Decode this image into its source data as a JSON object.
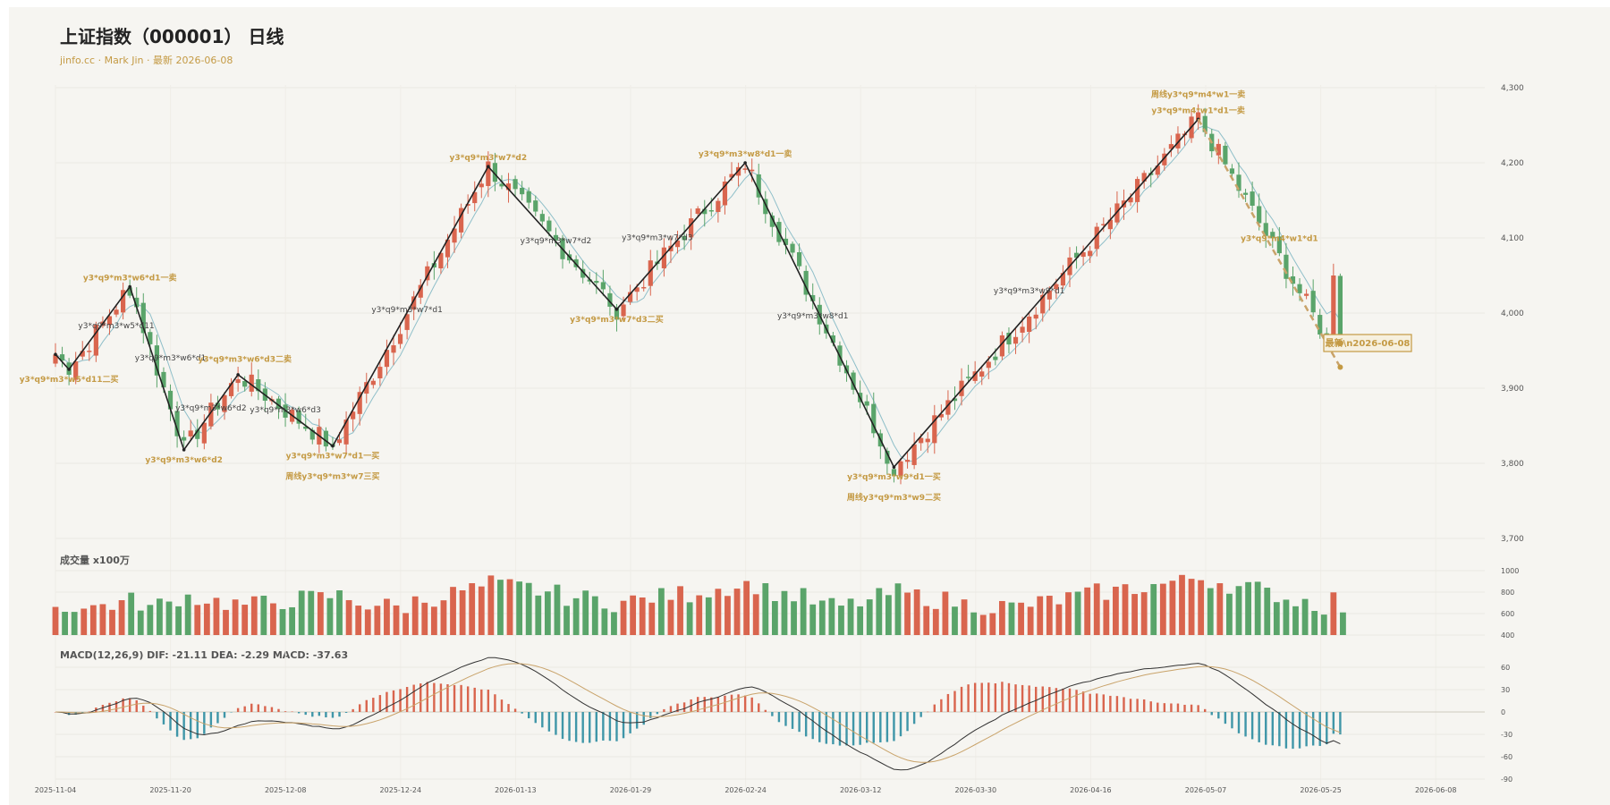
{
  "header": {
    "title": "上证指数（000001） 日线",
    "subtitle": "jinfo.cc · Mark Jin · 最新 2026-06-08"
  },
  "volume_label": "成交量 x100万",
  "macd_label": "MACD(12,26,9) DIF: -21.11 DEA: -2.29 MACD: -37.63",
  "colors": {
    "up": "#d9654e",
    "down": "#5aa46a",
    "ma": "#8fbfc9",
    "dif": "#333333",
    "dea": "#c9a36a",
    "macd_pos": "#d9654e",
    "macd_neg": "#3f96a8",
    "zigzag": "#222222",
    "annotation": "#c49a44",
    "trend": "#c9a36a",
    "background": "#f6f5f1"
  },
  "chart_data": {
    "type": "candlestick",
    "x_ticks": [
      "2025-11-04",
      "2025-11-20",
      "2025-12-08",
      "2025-12-24",
      "2026-01-13",
      "2026-01-29",
      "2026-02-24",
      "2026-03-12",
      "2026-03-30",
      "2026-04-16",
      "2026-05-07",
      "2026-05-25",
      "2026-06-08"
    ],
    "price_axis": {
      "ticks": [
        3700,
        3800,
        3900,
        4000,
        4100,
        4200,
        4300
      ],
      "range": [
        3700,
        4320
      ]
    },
    "volume_axis": {
      "ticks": [
        400,
        600,
        800,
        1000
      ],
      "range": [
        400,
        1000
      ]
    },
    "macd_axis": {
      "ticks": [
        60,
        30,
        0,
        -30,
        -60,
        -90
      ],
      "range": [
        -90,
        60
      ]
    },
    "zigzag_points": [
      {
        "i": 0,
        "v": 3945
      },
      {
        "i": 2,
        "v": 3925
      },
      {
        "i": 11,
        "v": 4035
      },
      {
        "i": 19,
        "v": 3818
      },
      {
        "i": 27,
        "v": 3918
      },
      {
        "i": 41,
        "v": 3823
      },
      {
        "i": 64,
        "v": 4195
      },
      {
        "i": 83,
        "v": 4005
      },
      {
        "i": 102,
        "v": 4200
      },
      {
        "i": 124,
        "v": 3795
      },
      {
        "i": 169,
        "v": 4258
      }
    ],
    "trend_line": [
      {
        "i": 169,
        "v": 4258
      },
      {
        "i": 190,
        "v": 3928
      }
    ],
    "annotations": [
      {
        "i": 2,
        "v": 3925,
        "text": "y3*q9*m3*w5*d11二买",
        "color": "annotation",
        "pos": "below"
      },
      {
        "i": 11,
        "v": 4035,
        "text": "y3*q9*m3*w6*d1一卖",
        "color": "annotation",
        "pos": "above"
      },
      {
        "i": 9,
        "v": 3980,
        "text": "y3*q9*m3*w5*d11",
        "color": "dark",
        "pos": "mid"
      },
      {
        "i": 17,
        "v": 3937,
        "text": "y3*q9*m3*w6*d1",
        "color": "dark",
        "pos": "mid"
      },
      {
        "i": 19,
        "v": 3818,
        "text": "y3*q9*m3*w6*d2",
        "color": "annotation",
        "pos": "below"
      },
      {
        "i": 23,
        "v": 3870,
        "text": "y3*q9*m3*w6*d2",
        "color": "dark",
        "pos": "mid"
      },
      {
        "i": 28,
        "v": 3935,
        "text": "y3*q9*m3*w6*d3二卖",
        "color": "annotation",
        "pos": "mid"
      },
      {
        "i": 34,
        "v": 3868,
        "text": "y3*q9*m3*w6*d3",
        "color": "dark",
        "pos": "mid"
      },
      {
        "i": 41,
        "v": 3823,
        "text": "y3*q9*m3*w7*d1一买",
        "color": "annotation",
        "pos": "below"
      },
      {
        "i": 41,
        "v": 3810,
        "text": "周线y3*q9*m3*w7三买",
        "color": "annotation",
        "pos": "below2"
      },
      {
        "i": 52,
        "v": 4001,
        "text": "y3*q9*m3*w7*d1",
        "color": "dark",
        "pos": "mid"
      },
      {
        "i": 64,
        "v": 4195,
        "text": "y3*q9*m3*w7*d2",
        "color": "annotation",
        "pos": "above"
      },
      {
        "i": 74,
        "v": 4093,
        "text": "y3*q9*m3*w7*d2",
        "color": "dark",
        "pos": "mid"
      },
      {
        "i": 83,
        "v": 4005,
        "text": "y3*q9*m3*w7*d3二买",
        "color": "annotation",
        "pos": "below"
      },
      {
        "i": 89,
        "v": 4097,
        "text": "y3*q9*m3*w7*d3",
        "color": "dark",
        "pos": "mid"
      },
      {
        "i": 102,
        "v": 4200,
        "text": "y3*q9*m3*w8*d1一卖",
        "color": "annotation",
        "pos": "above"
      },
      {
        "i": 112,
        "v": 3993,
        "text": "y3*q9*m3*w8*d1",
        "color": "dark",
        "pos": "mid"
      },
      {
        "i": 124,
        "v": 3795,
        "text": "y3*q9*m3*w9*d1一买",
        "color": "annotation",
        "pos": "below"
      },
      {
        "i": 124,
        "v": 3782,
        "text": "周线y3*q9*m3*w9二买",
        "color": "annotation",
        "pos": "below2"
      },
      {
        "i": 144,
        "v": 4026,
        "text": "y3*q9*m3*w9*d1",
        "color": "dark",
        "pos": "mid"
      },
      {
        "i": 169,
        "v": 4278,
        "text": "周线y3*q9*m4*w1一卖",
        "color": "annotation",
        "pos": "above2"
      },
      {
        "i": 169,
        "v": 4258,
        "text": "y3*q9*m4*w1*d1一卖",
        "color": "annotation",
        "pos": "above"
      },
      {
        "i": 181,
        "v": 4096,
        "text": "y3*q9*m4*w1*d1",
        "color": "annotation",
        "pos": "mid"
      }
    ],
    "latest_label": "最新\\n2026-06-08",
    "latest_point": {
      "i": 190,
      "v": 3960
    }
  }
}
